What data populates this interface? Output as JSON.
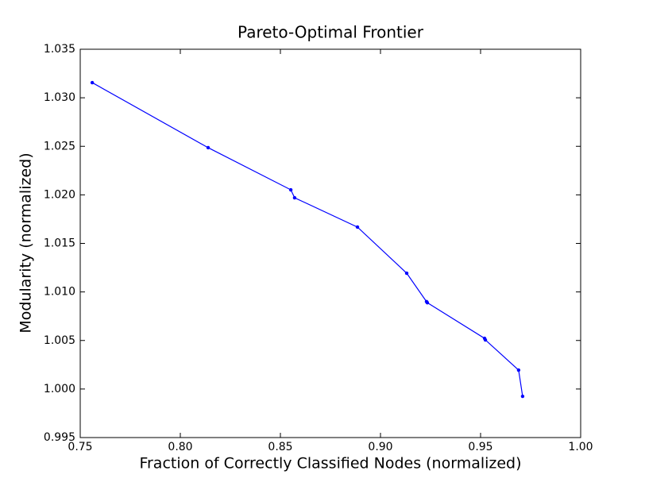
{
  "chart_data": {
    "type": "line",
    "title": "Pareto-Optimal Frontier",
    "xlabel": "Fraction of Correctly Classified Nodes (normalized)",
    "ylabel": "Modularity (normalized)",
    "series": [
      {
        "color": "#0000ff",
        "x": [
          0.756,
          0.8139,
          0.8552,
          0.8571,
          0.8885,
          0.9131,
          0.923,
          0.9234,
          0.952,
          0.9524,
          0.969,
          0.971
        ],
        "values": [
          1.03156,
          1.02486,
          1.02052,
          1.0197,
          1.01668,
          1.01193,
          1.009,
          1.00889,
          1.00522,
          1.00506,
          1.00195,
          0.99925
        ]
      }
    ],
    "xlim": [
      0.75,
      1.0
    ],
    "ylim": [
      0.995,
      1.035
    ],
    "xticks": [
      0.75,
      {
        "value": 0.8,
        "label": "0.80"
      },
      0.85,
      {
        "value": 0.9,
        "label": "0.90"
      },
      0.95,
      {
        "value": 1.0,
        "label": "1.00"
      }
    ],
    "yticks": [
      0.995,
      {
        "value": 1.0,
        "label": "1.000"
      },
      1.005,
      {
        "value": 1.01,
        "label": "1.010"
      },
      1.015,
      {
        "value": 1.02,
        "label": "1.020"
      },
      1.025,
      {
        "value": 1.03,
        "label": "1.030"
      },
      1.035
    ]
  }
}
